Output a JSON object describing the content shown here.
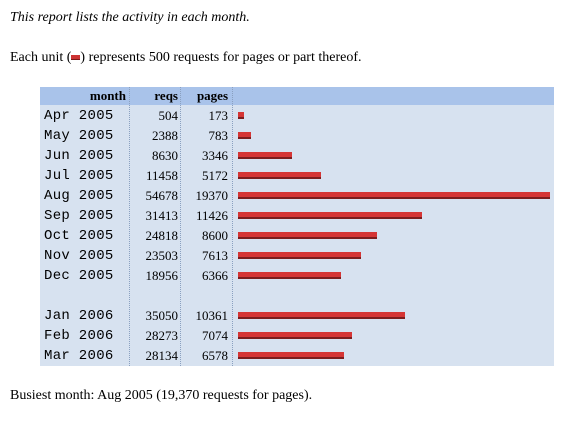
{
  "intro": "This report lists the activity in each month.",
  "unit_note": {
    "before": "Each unit (",
    "after": ") represents 500 requests for pages or part thereof."
  },
  "colors": {
    "bar": "#d53535",
    "table_bg": "#d7e2f0",
    "header_bg": "#a9c3ea"
  },
  "table": {
    "headers": {
      "month": "month",
      "reqs": "reqs",
      "pages": "pages"
    },
    "rows": [
      {
        "month": "Apr 2005",
        "reqs": "504",
        "pages": "173",
        "pages_value": 173
      },
      {
        "month": "May 2005",
        "reqs": "2388",
        "pages": "783",
        "pages_value": 783
      },
      {
        "month": "Jun 2005",
        "reqs": "8630",
        "pages": "3346",
        "pages_value": 3346
      },
      {
        "month": "Jul 2005",
        "reqs": "11458",
        "pages": "5172",
        "pages_value": 5172
      },
      {
        "month": "Aug 2005",
        "reqs": "54678",
        "pages": "19370",
        "pages_value": 19370
      },
      {
        "month": "Sep 2005",
        "reqs": "31413",
        "pages": "11426",
        "pages_value": 11426
      },
      {
        "month": "Oct 2005",
        "reqs": "24818",
        "pages": "8600",
        "pages_value": 8600
      },
      {
        "month": "Nov 2005",
        "reqs": "23503",
        "pages": "7613",
        "pages_value": 7613
      },
      {
        "month": "Dec 2005",
        "reqs": "18956",
        "pages": "6366",
        "pages_value": 6366
      },
      {
        "month": "Jan 2006",
        "reqs": "35050",
        "pages": "10361",
        "pages_value": 10361
      },
      {
        "month": "Feb 2006",
        "reqs": "28273",
        "pages": "7074",
        "pages_value": 7074
      },
      {
        "month": "Mar 2006",
        "reqs": "28134",
        "pages": "6578",
        "pages_value": 6578
      }
    ]
  },
  "busiest": "Busiest month: Aug 2005 (19,370 requests for pages)."
}
